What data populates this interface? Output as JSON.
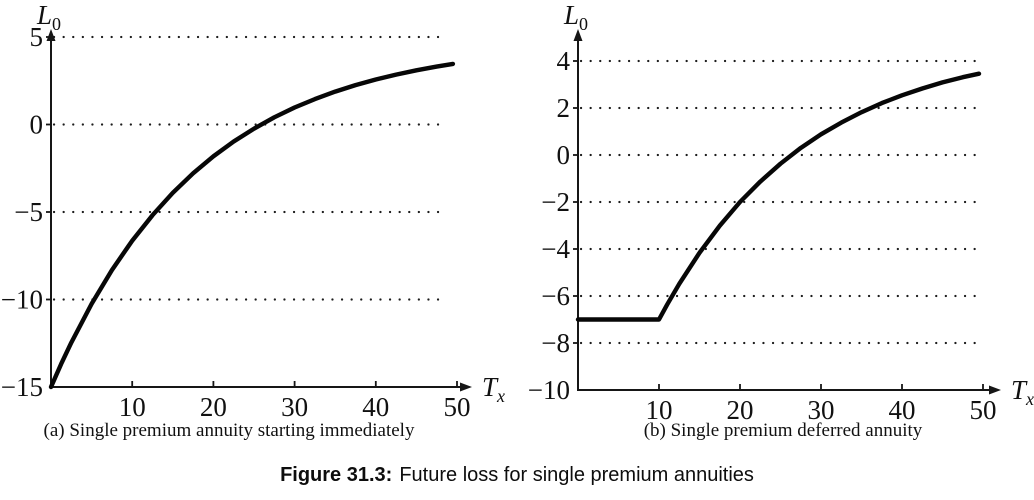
{
  "figure": {
    "captions": {
      "a": "(a) Single premium annuity starting immediately",
      "b": "(b) Single premium deferred annuity"
    },
    "caption": {
      "label": "Figure 31.3:",
      "text": "Future loss for single premium annuities"
    }
  },
  "chart_data": [
    {
      "type": "line",
      "title": "(a) Single premium annuity starting immediately",
      "xlabel": "T_x",
      "ylabel": "L_0",
      "axis_letters": {
        "y_main": "L",
        "y_sub": "0",
        "x_main": "T",
        "x_sub": "x"
      },
      "xlim": [
        0,
        52
      ],
      "ylim": [
        -15,
        5
      ],
      "grid": "dotted-horizontal",
      "legend": "none",
      "x_ticks": [
        "10",
        "20",
        "30",
        "40",
        "50"
      ],
      "y_ticks": [
        {
          "value": 5,
          "label": "5",
          "gridline": true
        },
        {
          "value": 0,
          "label": "0",
          "gridline": true
        },
        {
          "value": -5,
          "label": "−5",
          "gridline": true
        },
        {
          "value": -10,
          "label": "−10",
          "gridline": true
        },
        {
          "value": -15,
          "label": "−15",
          "gridline": false
        }
      ],
      "series": [
        {
          "name": "future-loss-immediate-annuity",
          "points": [
            [
              0,
              -15
            ],
            [
              1.25,
              -13.69
            ],
            [
              2.5,
              -12.46
            ],
            [
              5,
              -10.25
            ],
            [
              7.5,
              -8.32
            ],
            [
              10,
              -6.64
            ],
            [
              12.5,
              -5.18
            ],
            [
              15,
              -3.9
            ],
            [
              17.5,
              -2.79
            ],
            [
              20,
              -1.82
            ],
            [
              22.5,
              -0.97
            ],
            [
              25,
              -0.24
            ],
            [
              27.5,
              0.41
            ],
            [
              30,
              0.97
            ],
            [
              32.5,
              1.45
            ],
            [
              35,
              1.88
            ],
            [
              37.5,
              2.25
            ],
            [
              40,
              2.57
            ],
            [
              42.5,
              2.85
            ],
            [
              45,
              3.1
            ],
            [
              47.5,
              3.31
            ],
            [
              49.5,
              3.46
            ]
          ]
        }
      ]
    },
    {
      "type": "line",
      "title": "(b) Single premium deferred annuity",
      "xlabel": "T_x",
      "ylabel": "L_0",
      "axis_letters": {
        "y_main": "L",
        "y_sub": "0",
        "x_main": "T",
        "x_sub": "x"
      },
      "xlim": [
        0,
        52
      ],
      "ylim": [
        -10,
        4
      ],
      "grid": "dotted-horizontal",
      "legend": "none",
      "x_ticks": [
        "10",
        "20",
        "30",
        "40",
        "50"
      ],
      "y_ticks": [
        {
          "value": 4,
          "label": "4",
          "gridline": true
        },
        {
          "value": 2,
          "label": "2",
          "gridline": true
        },
        {
          "value": 0,
          "label": "0",
          "gridline": true
        },
        {
          "value": -2,
          "label": "−2",
          "gridline": true
        },
        {
          "value": -4,
          "label": "−4",
          "gridline": true
        },
        {
          "value": -6,
          "label": "−6",
          "gridline": true
        },
        {
          "value": -8,
          "label": "−8",
          "gridline": true
        },
        {
          "value": -10,
          "label": "−10",
          "gridline": false
        }
      ],
      "series": [
        {
          "name": "future-loss-deferred-annuity",
          "points": [
            [
              0,
              -7
            ],
            [
              5,
              -7
            ],
            [
              10,
              -7
            ],
            [
              11,
              -6.37
            ],
            [
              12.5,
              -5.48
            ],
            [
              15,
              -4.16
            ],
            [
              17.5,
              -3.01
            ],
            [
              20,
              -2
            ],
            [
              22.5,
              -1.13
            ],
            [
              25,
              -0.37
            ],
            [
              27.5,
              0.3
            ],
            [
              30,
              0.88
            ],
            [
              32.5,
              1.38
            ],
            [
              35,
              1.82
            ],
            [
              37.5,
              2.21
            ],
            [
              40,
              2.54
            ],
            [
              42.5,
              2.83
            ],
            [
              45,
              3.09
            ],
            [
              47.5,
              3.31
            ],
            [
              49.5,
              3.46
            ]
          ]
        }
      ]
    }
  ]
}
